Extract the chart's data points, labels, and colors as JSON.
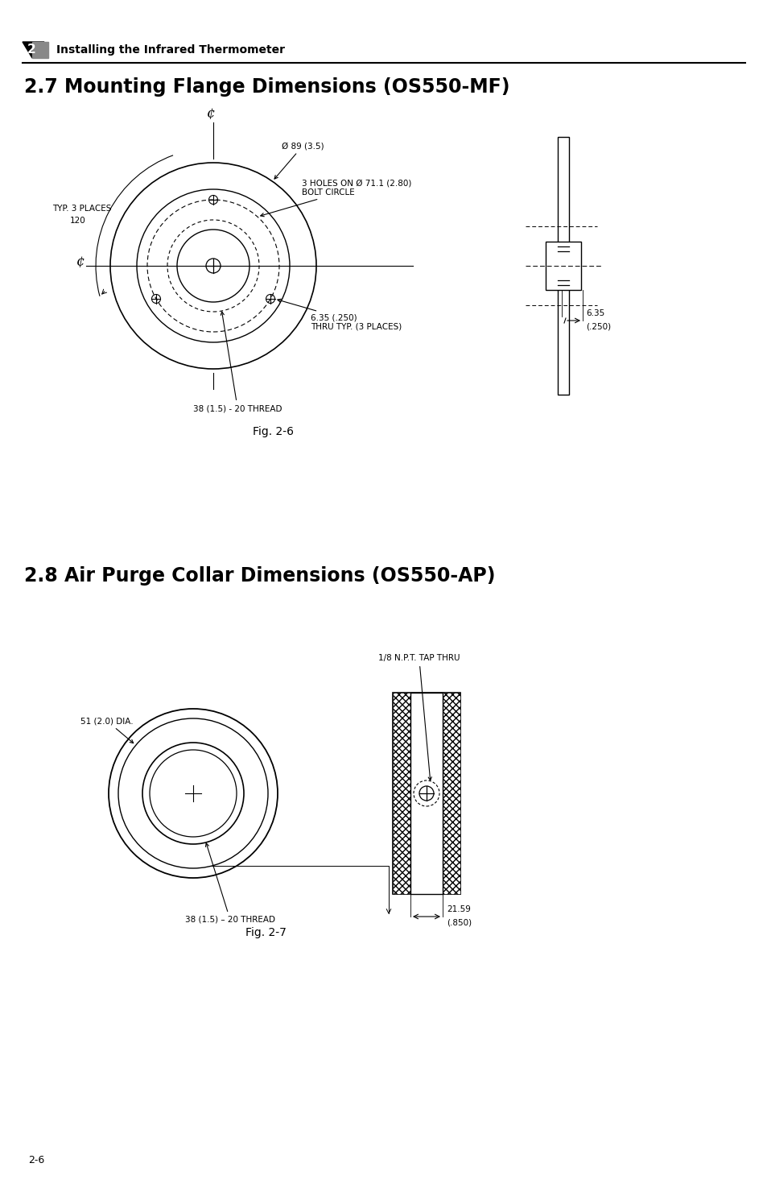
{
  "page_bg": "#ffffff",
  "header_text": "Installing the Infrared Thermometer",
  "section1_title": "2.7 Mounting Flange Dimensions (OS550-MF)",
  "section2_title": "2.8 Air Purge Collar Dimensions (OS550-AP)",
  "fig1_caption": "Fig. 2-6",
  "fig2_caption": "Fig. 2-7",
  "footer_text": "2-6",
  "line_color": "#000000",
  "text_color": "#000000",
  "annotation_fontsize": 7.5,
  "title_fontsize": 17,
  "header_fontsize": 10
}
